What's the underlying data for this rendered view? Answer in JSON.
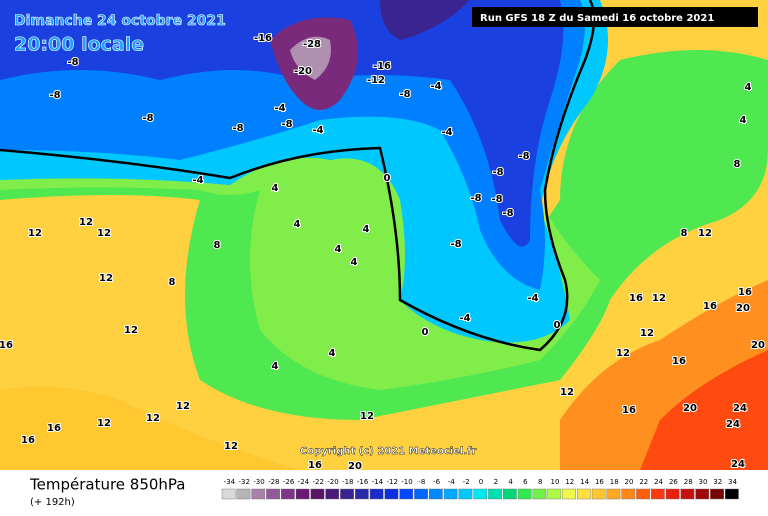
{
  "header": {
    "date": "Dimanche 24 octobre 2021",
    "time": "20:00 locale",
    "run": "Run GFS 18 Z du Samedi 16 octobre 2021"
  },
  "footer": {
    "variable": "Température 850hPa",
    "lead": "(+ 192h)",
    "copyright": "Copyright (c) 2021 Meteociel.fr"
  },
  "legend": {
    "ticks": [
      -34,
      -32,
      -30,
      -28,
      -26,
      -24,
      -22,
      -20,
      -18,
      -16,
      -14,
      -12,
      -10,
      -8,
      -6,
      -4,
      -2,
      0,
      2,
      4,
      6,
      8,
      10,
      12,
      14,
      16,
      18,
      20,
      22,
      24,
      26,
      28,
      30,
      32,
      34
    ],
    "colors": [
      "#d9d9d9",
      "#b5b5b5",
      "#a882a8",
      "#93589a",
      "#7d3585",
      "#6a1a72",
      "#5a1466",
      "#4a1a7a",
      "#3a2490",
      "#2a2aa8",
      "#1a2cc8",
      "#0a2ee0",
      "#0048ff",
      "#0068ff",
      "#0088ff",
      "#00a8ff",
      "#00c8ff",
      "#00e8f0",
      "#00e0b0",
      "#00d878",
      "#30e850",
      "#70f048",
      "#b0f848",
      "#f0f848",
      "#ffe040",
      "#ffc830",
      "#ffa820",
      "#ff8818",
      "#ff6010",
      "#ff3810",
      "#e82010",
      "#c81010",
      "#a00808",
      "#780404",
      "#000000"
    ]
  },
  "map_labels": [
    "-16",
    "-28",
    "-20",
    "-12",
    "-16",
    "-8",
    "-4",
    "-8",
    "-8",
    "-8",
    "-4",
    "-8",
    "-8",
    "-4",
    "-4",
    "-4",
    "-8",
    "-8",
    "-8",
    "-8",
    "-8",
    "-8",
    "-4",
    "-4",
    "0",
    "0",
    "0",
    "4",
    "4",
    "4",
    "4",
    "4",
    "4",
    "4",
    "8",
    "8",
    "12",
    "12",
    "12",
    "12",
    "12",
    "12",
    "12",
    "12",
    "12",
    "16",
    "16",
    "16",
    "12",
    "16",
    "20",
    "12",
    "16",
    "12",
    "16",
    "16",
    "20",
    "16",
    "16",
    "20",
    "24",
    "24",
    "24",
    "12",
    "8",
    "4",
    "4",
    "8",
    "12",
    "12",
    "20"
  ]
}
